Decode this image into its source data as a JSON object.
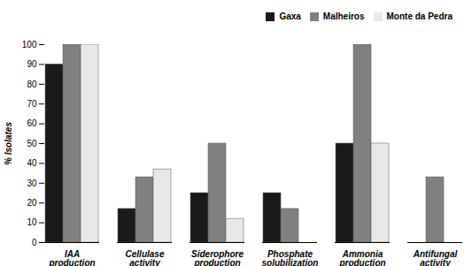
{
  "chart_data": {
    "type": "bar",
    "categories": [
      "IAA\nproduction",
      "Cellulase\nactivity",
      "Siderophore\nproduction",
      "Phosphate\nsolubilization",
      "Ammonia\nproduction",
      "Antifungal\nactivity"
    ],
    "series": [
      {
        "name": "Gaxa",
        "color": "#1a1a1a",
        "values": [
          90,
          17,
          25,
          25,
          50,
          0
        ]
      },
      {
        "name": "Malheiros",
        "color": "#808080",
        "values": [
          100,
          33,
          50,
          17,
          100,
          33
        ]
      },
      {
        "name": "Monte da Pedra",
        "color": "#e8e8e8",
        "values": [
          100,
          37,
          12,
          0,
          50,
          0
        ]
      }
    ],
    "ylabel": "% Isolates",
    "ylim": [
      0,
      100
    ],
    "yticks": [
      0,
      10,
      20,
      30,
      40,
      50,
      60,
      70,
      80,
      90,
      100
    ],
    "grid": false,
    "legend": "top right"
  }
}
